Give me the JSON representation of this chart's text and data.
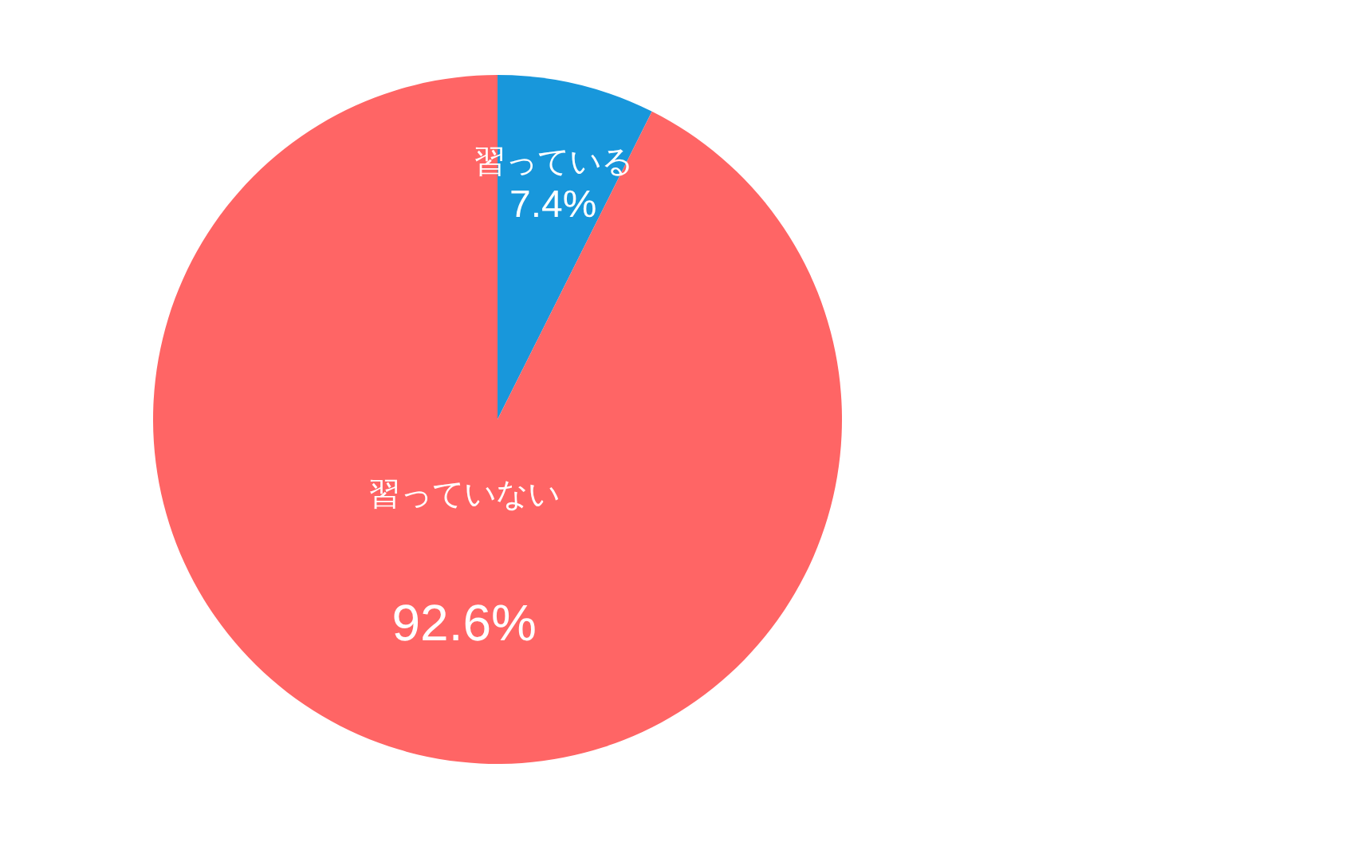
{
  "chart_data": {
    "type": "pie",
    "categories": [
      "習っている",
      "習っていない"
    ],
    "values": [
      7.4,
      92.6
    ],
    "colors": [
      "#1897db",
      "#ff6565"
    ],
    "value_labels": [
      "7.4%",
      "92.6%"
    ],
    "legend": false
  }
}
